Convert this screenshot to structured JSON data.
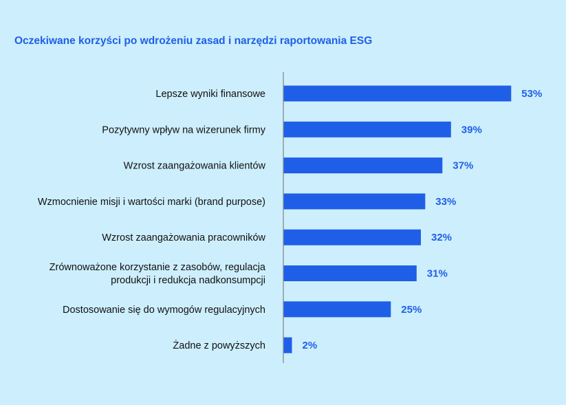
{
  "colors": {
    "background": "#cdeefc",
    "bar": "#1f5fe8",
    "title": "#1f5fe8",
    "value_label": "#1f5fe8",
    "axis": "#7f8c95",
    "category_text": "#111111"
  },
  "chart_data": {
    "type": "bar",
    "orientation": "horizontal",
    "title": "Oczekiwane korzyści po wdrożeniu zasad i narzędzi raportowania ESG",
    "xlabel": "",
    "ylabel": "",
    "unit": "%",
    "xlim": [
      0,
      60
    ],
    "grid": false,
    "legend": false,
    "categories": [
      [
        "Lepsze wyniki finansowe"
      ],
      [
        "Pozytywny wpływ na wizerunek firmy"
      ],
      [
        "Wzrost zaangażowania klientów"
      ],
      [
        "Wzmocnienie misji i wartości marki (brand purpose)"
      ],
      [
        "Wzrost zaangażowania pracowników"
      ],
      [
        "Zrównoważone korzystanie z zasobów, regulacja",
        "produkcji i redukcja nadkonsumpcji"
      ],
      [
        "Dostosowanie się do wymogów regulacyjnych"
      ],
      [
        "Żadne z powyższych"
      ]
    ],
    "values": [
      53,
      39,
      37,
      33,
      32,
      31,
      25,
      2
    ],
    "value_labels": [
      "53%",
      "39%",
      "37%",
      "33%",
      "32%",
      "31%",
      "25%",
      "2%"
    ]
  }
}
